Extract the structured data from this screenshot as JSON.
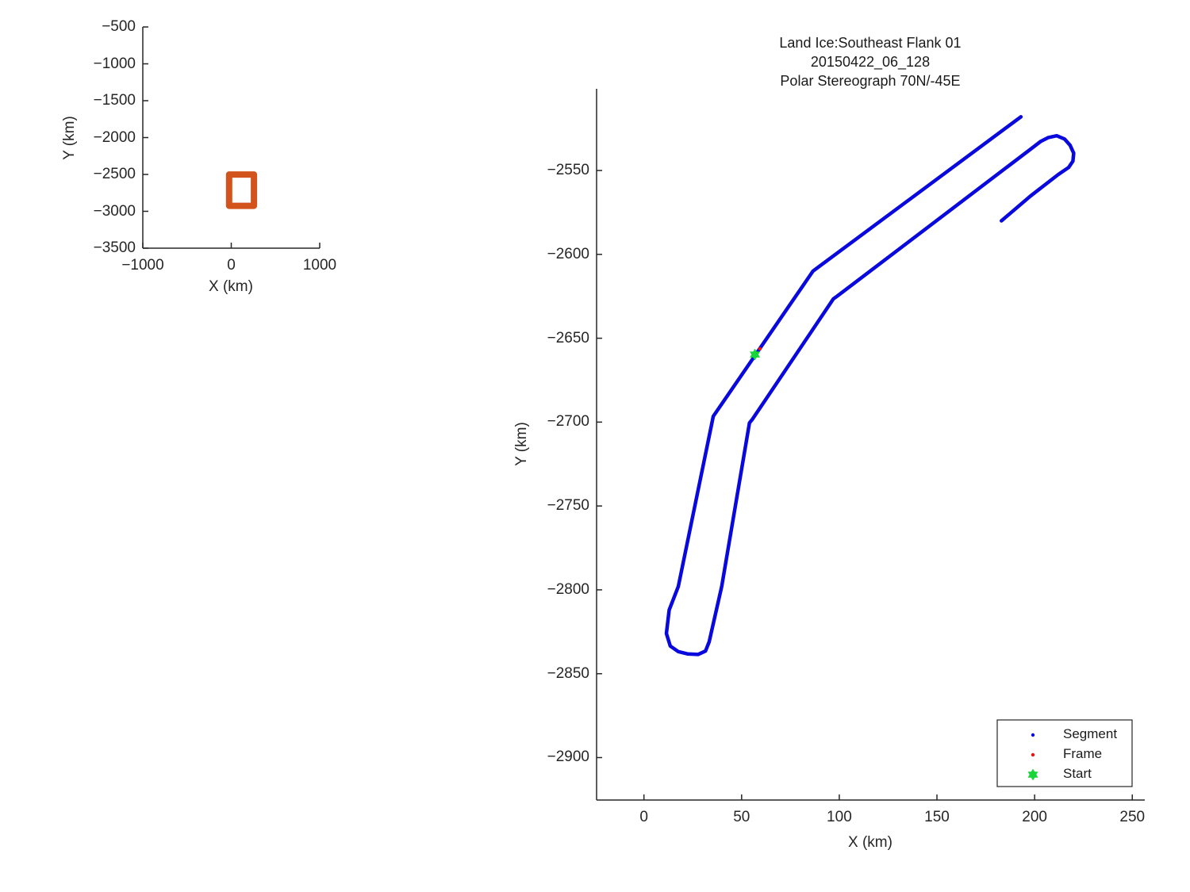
{
  "window": {
    "background": "#ffffff"
  },
  "colors": {
    "track_blue": "#0909dd",
    "frame_red": "#e81414",
    "start_green": "#18d63a",
    "coverage_orange": "#d2531c",
    "axis": "#262626",
    "text": "#1a1a1a"
  },
  "chart_data": [
    {
      "id": "overview",
      "type": "line",
      "title_lines": [],
      "xlabel": "X (km)",
      "ylabel": "Y (km)",
      "xlim": [
        -1000,
        1000
      ],
      "ylim": [
        -3500,
        -500
      ],
      "xticks": [
        -1000,
        0,
        1000
      ],
      "yticks": [
        -500,
        -1000,
        -1500,
        -2000,
        -2500,
        -3000,
        -3500
      ],
      "grid": false,
      "box": false,
      "tick_direction": "in",
      "series": [
        {
          "name": "coverage-extent-box",
          "color": "#d2531c",
          "line_width": 8,
          "closed": true,
          "points": [
            [
              -24.25,
              -2501.3
            ],
            [
              256.4,
              -2501.3
            ],
            [
              256.4,
              -2925.3
            ],
            [
              -24.25,
              -2925.3
            ]
          ]
        }
      ],
      "markers": [],
      "legend": null
    },
    {
      "id": "main",
      "type": "line",
      "title_lines": [
        "Land Ice:Southeast Flank 01",
        "20150422_06_128",
        "Polar Stereograph 70N/-45E"
      ],
      "xlabel": "X (km)",
      "ylabel": "Y (km)",
      "xlim": [
        -24.25,
        256.4
      ],
      "ylim": [
        -2925.3,
        -2501.3
      ],
      "xticks": [
        0,
        50,
        100,
        150,
        200,
        250
      ],
      "yticks": [
        -2550,
        -2600,
        -2650,
        -2700,
        -2750,
        -2800,
        -2850,
        -2900
      ],
      "grid": false,
      "box": false,
      "tick_direction": "in",
      "series": [
        {
          "name": "segment-track",
          "color": "#0909dd",
          "line_width": 4.5,
          "closed": false,
          "points": [
            [
              183.0,
              -2580.0
            ],
            [
              197.9,
              -2565.2
            ],
            [
              212.1,
              -2552.4
            ],
            [
              217.4,
              -2548.2
            ],
            [
              219.6,
              -2544.4
            ],
            [
              220.0,
              -2539.7
            ],
            [
              218.2,
              -2535.0
            ],
            [
              215.3,
              -2531.2
            ],
            [
              211.3,
              -2529.3
            ],
            [
              206.9,
              -2530.4
            ],
            [
              203.2,
              -2532.6
            ],
            [
              197.9,
              -2537.3
            ],
            [
              99.0,
              -2624.8
            ],
            [
              97.0,
              -2626.5
            ],
            [
              55.5,
              -2698.3
            ],
            [
              54.0,
              -2700.5
            ],
            [
              39.8,
              -2798.0
            ],
            [
              33.4,
              -2831.0
            ],
            [
              31.5,
              -2836.5
            ],
            [
              27.7,
              -2838.5
            ],
            [
              22.3,
              -2838.2
            ],
            [
              17.6,
              -2836.8
            ],
            [
              13.5,
              -2833.5
            ],
            [
              11.5,
              -2826.0
            ],
            [
              12.9,
              -2812.0
            ],
            [
              17.6,
              -2798.0
            ],
            [
              35.5,
              -2696.5
            ],
            [
              36.5,
              -2694.8
            ],
            [
              86.5,
              -2610.0
            ],
            [
              88.0,
              -2608.7
            ],
            [
              193.0,
              -2518.0
            ]
          ]
        }
      ],
      "markers": [
        {
          "name": "frame-marker",
          "shape": "dot",
          "color": "#e81414",
          "x": 59.4,
          "y": -2656.3,
          "radius": 2.2
        },
        {
          "name": "start-marker",
          "shape": "hexagram",
          "color": "#18d63a",
          "x": 56.8,
          "y": -2659.7,
          "radius": 7.5
        }
      ],
      "legend": {
        "position": "lower-right",
        "items": [
          {
            "label": "Segment",
            "marker": "dot",
            "color": "#0909dd",
            "radius": 2.2
          },
          {
            "label": "Frame",
            "marker": "dot",
            "color": "#e81414",
            "radius": 2.2
          },
          {
            "label": "Start",
            "marker": "hexagram",
            "color": "#18d63a",
            "radius": 7.5
          }
        ]
      }
    }
  ]
}
